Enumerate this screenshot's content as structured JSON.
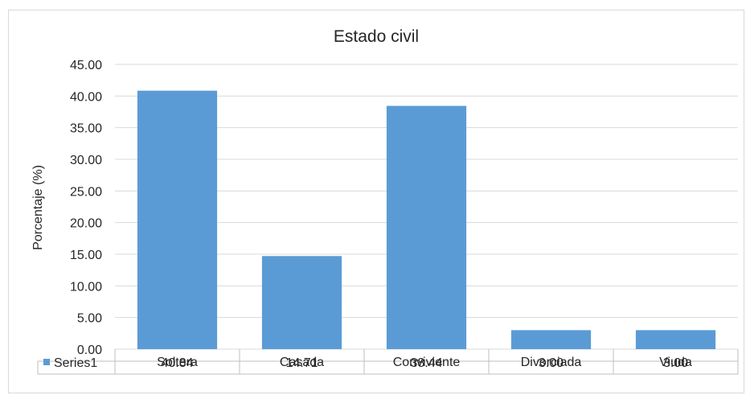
{
  "chart_data": {
    "type": "bar",
    "title": "Estado civil",
    "xlabel": "",
    "ylabel": "Porcentaje (%)",
    "ylim": [
      0,
      45
    ],
    "y_ticks": [
      "0.00",
      "5.00",
      "10.00",
      "15.00",
      "20.00",
      "25.00",
      "30.00",
      "35.00",
      "40.00",
      "45.00"
    ],
    "grid": true,
    "legend_placement": "data-table",
    "categories": [
      "Soltera",
      "Casada",
      "Conviviente",
      "Divorciada",
      "Viuda"
    ],
    "series": [
      {
        "name": "Series1",
        "values": [
          40.84,
          14.71,
          38.44,
          3.0,
          3.0
        ],
        "labels": [
          "40.84",
          "14.71",
          "38.44",
          "3.00",
          "3.00"
        ],
        "color": "#5b9bd5"
      }
    ],
    "gridline_color": "#d9d9d9",
    "table_border_color": "#bfbfbf"
  }
}
